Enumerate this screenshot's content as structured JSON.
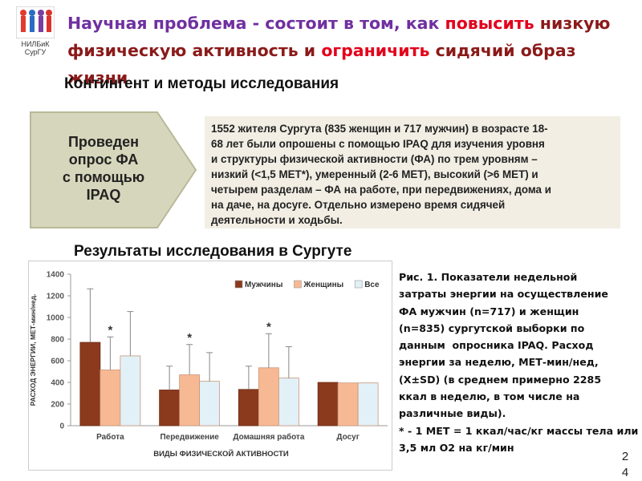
{
  "logo": {
    "lines": [
      "НИЛБиК",
      "СурГУ"
    ]
  },
  "header": {
    "title": [
      {
        "text": "Научная проблема - состоит в том, как ",
        "color": "#7030a0"
      },
      {
        "text": "повысить",
        "color": "#e3001b"
      },
      {
        "text": " низкую физическую активность и ",
        "color": "#8b1a1a"
      },
      {
        "text": "ограничить",
        "color": "#e3001b"
      },
      {
        "text": " сидячий образ жизни",
        "color": "#8b1a1a"
      }
    ]
  },
  "section1": {
    "heading": "Контингент и методы исследования",
    "arrow": [
      "Проведен",
      "опрос ФА",
      "с помощью",
      "IPAQ"
    ],
    "body": [
      "1552 жителя Сургута (835 женщин и 717 мужчин) в возрасте 18-",
      "68 лет были опрошены с помощью IPAQ для изучения уровня",
      "и структуры физической активности (ФА) по трем уровням –",
      "низкий (<1,5 МЕТ*), умеренный (2-6 МЕТ), высокий (>6 МЕТ) и",
      "четырем разделам – ФА на работе, при передвижениях, дома и",
      "на даче, на досуге. Отдельно измерено время сидячей",
      "деятельности и ходьбы."
    ]
  },
  "section2": {
    "heading": "Результаты исследования в Сургуте",
    "caption": [
      "Рис. 1. Показатели недельной",
      "затраты энергии на осуществление",
      "ФА мужчин (n=717) и женщин",
      "(n=835) сургутской выборки по",
      "данным  опросника IPAQ. Расход",
      "энергии за неделю, МЕТ-мин/нед,",
      "(X±SD) (в среднем примерно 2285",
      "ккал в неделю, в том числе на",
      "различные виды).",
      "* - 1 МЕТ = 1 ккал/час/кг массы тела или",
      "3,5 мл О2 на кг/мин"
    ]
  },
  "page_number": [
    "2",
    "4"
  ],
  "chart_data": {
    "type": "bar",
    "x_label": "ВИДЫ ФИЗИЧЕСКОЙ АКТИВНОСТИ",
    "y_label": "РАСХОД ЭНЕРГИИ, МЕТ-мин/нед.",
    "categories": [
      "Работа",
      "Передвижение",
      "Домашняя работа",
      "Досуг"
    ],
    "series": [
      {
        "name": "Мужчины",
        "color": "#8b3a1e",
        "values": [
          770,
          330,
          335,
          400
        ],
        "errors": [
          495,
          220,
          215,
          null
        ]
      },
      {
        "name": "Женщины",
        "color": "#f7b993",
        "values": [
          515,
          470,
          535,
          395
        ],
        "errors": [
          305,
          280,
          315,
          null
        ],
        "markers": [
          "*",
          "*",
          "*",
          null
        ]
      },
      {
        "name": "Все",
        "color": "#e2f1f7",
        "values": [
          645,
          410,
          440,
          395
        ],
        "errors": [
          410,
          265,
          290,
          null
        ]
      }
    ],
    "ylim": [
      0,
      1400
    ],
    "yticks": [
      0,
      200,
      400,
      600,
      800,
      1000,
      1200,
      1400
    ],
    "legend": "top-right"
  }
}
